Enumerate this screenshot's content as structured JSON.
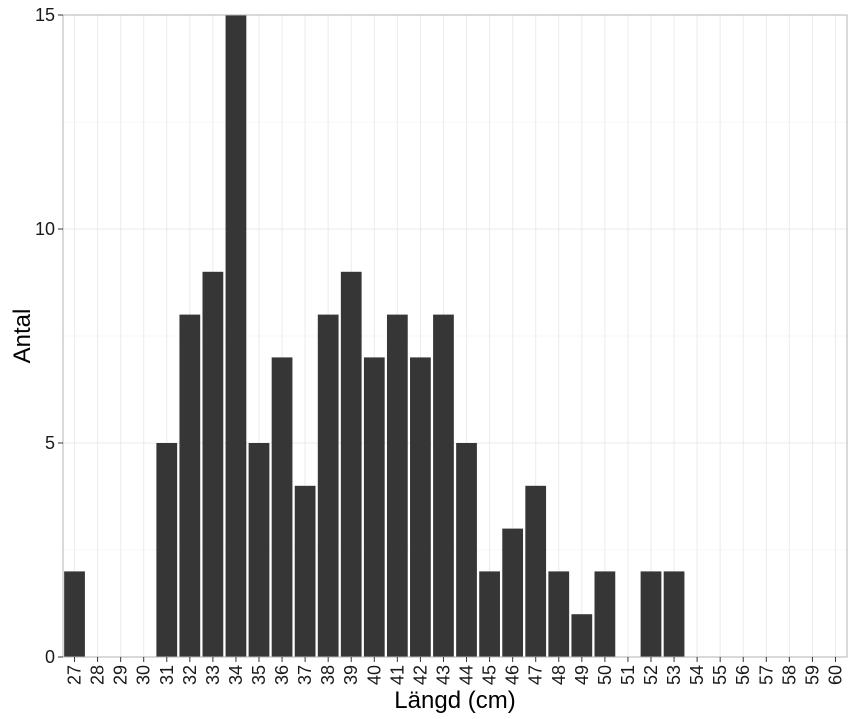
{
  "chart_data": {
    "type": "bar",
    "xlabel": "Längd (cm)",
    "ylabel": "Antal",
    "categories": [
      "27",
      "28",
      "29",
      "30",
      "31",
      "32",
      "33",
      "34",
      "35",
      "36",
      "37",
      "38",
      "39",
      "40",
      "41",
      "42",
      "43",
      "44",
      "45",
      "46",
      "47",
      "48",
      "49",
      "50",
      "51",
      "52",
      "53",
      "54",
      "55",
      "56",
      "57",
      "58",
      "59",
      "60"
    ],
    "values": [
      2,
      0,
      0,
      0,
      5,
      8,
      9,
      15,
      5,
      7,
      4,
      8,
      9,
      7,
      8,
      7,
      8,
      5,
      2,
      3,
      4,
      2,
      1,
      2,
      0,
      2,
      2,
      0,
      0,
      0,
      0,
      0,
      0,
      0
    ],
    "ylim": [
      0,
      15
    ],
    "yticks": [
      0,
      5,
      10,
      15
    ],
    "grid": true,
    "legend": "none"
  },
  "colors": {
    "bar": "#363636",
    "grid_major": "#ebebeb",
    "grid_minor": "#f7f7f7",
    "panel_border": "#b3b3b3",
    "background": "#ffffff"
  }
}
